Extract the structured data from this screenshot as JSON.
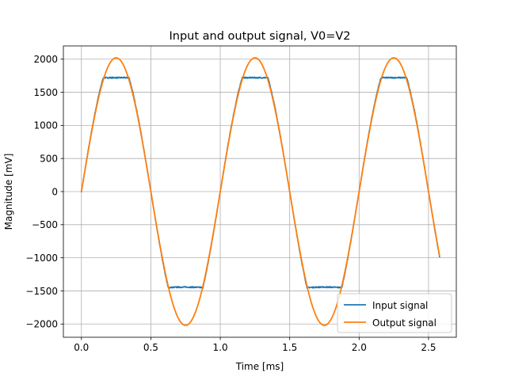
{
  "chart_data": {
    "type": "line",
    "title": "Input and output signal, V0=V2",
    "xlabel": "Time [ms]",
    "ylabel": "Magnitude [mV]",
    "xlim": [
      -0.13,
      2.7
    ],
    "ylim": [
      -2200,
      2200
    ],
    "xticks": [
      "0.0",
      "0.5",
      "1.0",
      "1.5",
      "2.0",
      "2.5"
    ],
    "yticks": [
      "−2000",
      "−1500",
      "−1000",
      "−500",
      "0",
      "500",
      "1000",
      "1500",
      "2000"
    ],
    "grid": true,
    "legend_position": "lower-right",
    "colors": {
      "input": "#1f77b4",
      "output": "#ff7f0e"
    },
    "period_ms": 1.0,
    "series": [
      {
        "name": "Input signal",
        "amplitude_mv": 1720,
        "clip_low_mv": -1450,
        "x_end": 2.58
      },
      {
        "name": "Output signal",
        "amplitude_mv": 2020,
        "x_end": 2.58
      }
    ]
  }
}
